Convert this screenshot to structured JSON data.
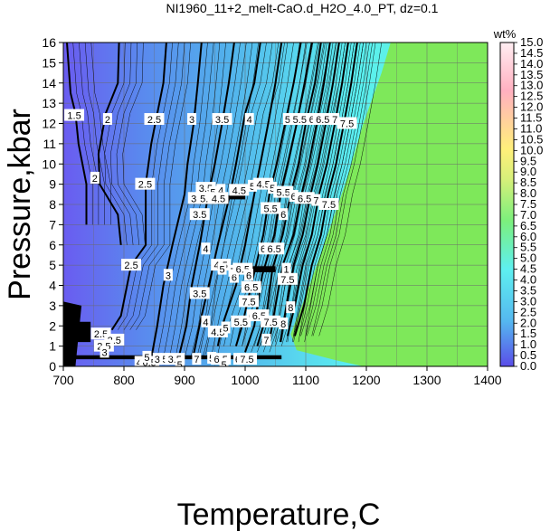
{
  "chart_data": {
    "type": "contour",
    "title": "NI1960_11+2_melt-CaO.d_H2O_4.0_PT, dz=0.1",
    "xlabel": "Temperature,C",
    "ylabel": "Pressure,kbar",
    "xlim": [
      700,
      1400
    ],
    "ylim": [
      0,
      16
    ],
    "x_ticks": [
      700,
      800,
      900,
      1000,
      1100,
      1200,
      1300,
      1400
    ],
    "y_ticks": [
      0,
      1,
      2,
      3,
      4,
      5,
      6,
      7,
      8,
      9,
      10,
      11,
      12,
      13,
      14,
      15,
      16
    ],
    "grid": true,
    "colorbar": {
      "title": "wt%",
      "range": [
        0.0,
        15.0
      ],
      "ticks": [
        "0.0",
        "0.5",
        "1.0",
        "1.5",
        "2.0",
        "2.5",
        "3.0",
        "3.5",
        "4.0",
        "4.5",
        "5.0",
        "5.5",
        "6.0",
        "6.5",
        "7.0",
        "7.5",
        "8.0",
        "8.5",
        "9.0",
        "9.5",
        "10.0",
        "10.5",
        "11.0",
        "11.5",
        "12.0",
        "12.5",
        "13.0",
        "13.5",
        "14.0",
        "14.5",
        "15.0"
      ],
      "colors": [
        "#5a4de8",
        "#55b8f0",
        "#5ef0f0",
        "#7cf07c",
        "#d8f07a",
        "#fff07a",
        "#ffb0c0",
        "#ffffff"
      ]
    },
    "fill_above_liquidus": "#7ee85a",
    "contours": [
      {
        "level": "1.5",
        "points": [
          [
            706,
            16
          ],
          [
            712,
            13.5
          ],
          [
            720,
            12.5
          ],
          [
            725,
            11
          ],
          [
            738,
            9
          ],
          [
            738,
            7
          ]
        ]
      },
      {
        "level": "2",
        "points": [
          [
            792,
            16
          ],
          [
            790,
            14
          ],
          [
            770,
            12.5
          ],
          [
            758,
            10.5
          ],
          [
            760,
            9
          ],
          [
            790,
            7.5
          ],
          [
            795,
            6
          ]
        ]
      },
      {
        "level": "2.5",
        "points": [
          [
            870,
            16
          ],
          [
            865,
            14
          ],
          [
            845,
            11
          ],
          [
            836,
            9
          ],
          [
            836,
            6
          ],
          [
            812,
            5
          ],
          [
            795,
            2.5
          ],
          [
            780,
            1.8
          ]
        ]
      },
      {
        "level": "3",
        "points": [
          [
            928,
            16
          ],
          [
            922,
            14
          ],
          [
            915,
            12
          ],
          [
            905,
            10
          ],
          [
            900,
            8.5
          ],
          [
            880,
            6
          ],
          [
            865,
            4
          ],
          [
            855,
            2
          ],
          [
            845,
            0.4
          ]
        ]
      },
      {
        "level": "3.5",
        "points": [
          [
            982,
            16
          ],
          [
            973,
            14
          ],
          [
            962,
            12
          ],
          [
            950,
            10
          ],
          [
            938,
            8.3
          ],
          [
            925,
            6
          ],
          [
            912,
            4
          ],
          [
            903,
            2
          ],
          [
            890,
            0.4
          ]
        ]
      },
      {
        "level": "4",
        "points": [
          [
            1025,
            16
          ],
          [
            1015,
            14
          ],
          [
            1000,
            12.5
          ],
          [
            985,
            10
          ],
          [
            975,
            8.5
          ],
          [
            955,
            6
          ],
          [
            940,
            4
          ],
          [
            928,
            2.5
          ],
          [
            915,
            0.6
          ]
        ]
      },
      {
        "level": "4.5",
        "points": [
          [
            1060,
            16
          ],
          [
            1050,
            14
          ],
          [
            1038,
            12
          ],
          [
            1025,
            10
          ],
          [
            1015,
            8.5
          ],
          [
            1000,
            6
          ],
          [
            985,
            4
          ],
          [
            962,
            2
          ],
          [
            955,
            1
          ]
        ]
      },
      {
        "level": "5",
        "points": [
          [
            1092,
            16
          ],
          [
            1080,
            14
          ],
          [
            1066,
            12
          ],
          [
            1052,
            10
          ],
          [
            1040,
            8.5
          ],
          [
            1030,
            6.5
          ],
          [
            1010,
            4
          ],
          [
            995,
            2
          ],
          [
            985,
            1
          ]
        ]
      },
      {
        "level": "5.5",
        "points": [
          [
            1110,
            16
          ],
          [
            1098,
            14
          ],
          [
            1085,
            12
          ],
          [
            1070,
            10
          ],
          [
            1058,
            8.5
          ],
          [
            1048,
            6.5
          ],
          [
            1028,
            4.5
          ],
          [
            1015,
            2
          ],
          [
            1000,
            0.7
          ]
        ]
      },
      {
        "level": "6",
        "points": [
          [
            1125,
            16
          ],
          [
            1115,
            14
          ],
          [
            1100,
            12
          ],
          [
            1088,
            10
          ],
          [
            1075,
            8.5
          ],
          [
            1062,
            6.5
          ],
          [
            1045,
            4.8
          ],
          [
            1035,
            2.5
          ],
          [
            1020,
            1
          ]
        ]
      },
      {
        "level": "6.5",
        "points": [
          [
            1140,
            16
          ],
          [
            1130,
            14
          ],
          [
            1118,
            12
          ],
          [
            1105,
            10
          ],
          [
            1093,
            8.5
          ],
          [
            1080,
            6.5
          ],
          [
            1062,
            5
          ],
          [
            1050,
            3
          ],
          [
            1040,
            1.2
          ]
        ]
      },
      {
        "level": "7",
        "points": [
          [
            1155,
            16
          ],
          [
            1145,
            14
          ],
          [
            1133,
            12
          ],
          [
            1120,
            10
          ],
          [
            1108,
            8.5
          ],
          [
            1095,
            6.5
          ],
          [
            1080,
            5
          ],
          [
            1068,
            3
          ],
          [
            1058,
            1.2
          ]
        ]
      },
      {
        "level": "7.5",
        "points": [
          [
            1170,
            16
          ],
          [
            1160,
            14
          ],
          [
            1148,
            12
          ],
          [
            1135,
            10
          ],
          [
            1122,
            8.5
          ],
          [
            1110,
            6.5
          ],
          [
            1095,
            5
          ],
          [
            1082,
            3
          ],
          [
            1070,
            1.5
          ]
        ]
      },
      {
        "level": "8",
        "points": [
          [
            1185,
            16
          ],
          [
            1175,
            14
          ],
          [
            1163,
            12
          ],
          [
            1150,
            10
          ],
          [
            1137,
            8.5
          ],
          [
            1125,
            6.5
          ],
          [
            1110,
            5
          ],
          [
            1097,
            3
          ],
          [
            1082,
            1.5
          ]
        ]
      }
    ],
    "labels": [
      {
        "text": "1.5",
        "x": 718,
        "y": 12.4
      },
      {
        "text": "2",
        "x": 773,
        "y": 12.2
      },
      {
        "text": "2.5",
        "x": 850,
        "y": 12.2
      },
      {
        "text": "3",
        "x": 912,
        "y": 12.2
      },
      {
        "text": "3.5",
        "x": 962,
        "y": 12.2
      },
      {
        "text": "4",
        "x": 1007,
        "y": 12.2
      },
      {
        "text": "5",
        "x": 1070,
        "y": 12.2
      },
      {
        "text": "5.5",
        "x": 1090,
        "y": 12.2
      },
      {
        "text": "6",
        "x": 1110,
        "y": 12.2
      },
      {
        "text": "6.5",
        "x": 1128,
        "y": 12.2
      },
      {
        "text": "7",
        "x": 1148,
        "y": 12.2
      },
      {
        "text": "7.5",
        "x": 1168,
        "y": 12.0
      },
      {
        "text": "2",
        "x": 752,
        "y": 9.3
      },
      {
        "text": "2.5",
        "x": 835,
        "y": 9.0
      },
      {
        "text": "3.5",
        "x": 935,
        "y": 8.8
      },
      {
        "text": "5",
        "x": 947,
        "y": 8.6
      },
      {
        "text": "4",
        "x": 960,
        "y": 8.7
      },
      {
        "text": "3.5",
        "x": 922,
        "y": 8.3
      },
      {
        "text": "5.5",
        "x": 937,
        "y": 8.3
      },
      {
        "text": "4.5",
        "x": 956,
        "y": 8.3
      },
      {
        "text": "4.5",
        "x": 990,
        "y": 8.7
      },
      {
        "text": "5",
        "x": 1012,
        "y": 8.9
      },
      {
        "text": "4.5",
        "x": 1030,
        "y": 9.0
      },
      {
        "text": "5",
        "x": 1045,
        "y": 8.8
      },
      {
        "text": "5.5",
        "x": 1063,
        "y": 8.6
      },
      {
        "text": "6",
        "x": 1080,
        "y": 8.4
      },
      {
        "text": "6.5",
        "x": 1098,
        "y": 8.3
      },
      {
        "text": "7",
        "x": 1117,
        "y": 8.2
      },
      {
        "text": "7.5",
        "x": 1138,
        "y": 8.0
      },
      {
        "text": "3.5",
        "x": 925,
        "y": 7.5
      },
      {
        "text": "5.5",
        "x": 1042,
        "y": 7.8
      },
      {
        "text": "6",
        "x": 1063,
        "y": 7.5
      },
      {
        "text": "4",
        "x": 935,
        "y": 5.8
      },
      {
        "text": "4.5",
        "x": 960,
        "y": 5.0
      },
      {
        "text": "6",
        "x": 1030,
        "y": 5.8
      },
      {
        "text": "6.5",
        "x": 1048,
        "y": 5.8
      },
      {
        "text": "1",
        "x": 1068,
        "y": 4.8
      },
      {
        "text": "7.5",
        "x": 1070,
        "y": 4.3
      },
      {
        "text": "5",
        "x": 962,
        "y": 4.8
      },
      {
        "text": "7",
        "x": 980,
        "y": 4.7
      },
      {
        "text": "6",
        "x": 982,
        "y": 4.4
      },
      {
        "text": "6.5",
        "x": 996,
        "y": 4.8
      },
      {
        "text": "6",
        "x": 1006,
        "y": 4.5
      },
      {
        "text": "6.5",
        "x": 1010,
        "y": 3.9
      },
      {
        "text": "7.5",
        "x": 1006,
        "y": 3.2
      },
      {
        "text": "2.5",
        "x": 812,
        "y": 5.0
      },
      {
        "text": "3",
        "x": 873,
        "y": 4.5
      },
      {
        "text": "3.5",
        "x": 925,
        "y": 3.6
      },
      {
        "text": "4",
        "x": 935,
        "y": 2.2
      },
      {
        "text": "4.5",
        "x": 955,
        "y": 1.7
      },
      {
        "text": "5",
        "x": 968,
        "y": 1.9
      },
      {
        "text": "5.5",
        "x": 993,
        "y": 2.2
      },
      {
        "text": "6",
        "x": 1010,
        "y": 2.5
      },
      {
        "text": "6.5",
        "x": 1023,
        "y": 2.5
      },
      {
        "text": "7.5",
        "x": 1042,
        "y": 2.2
      },
      {
        "text": "8",
        "x": 1063,
        "y": 2.1
      },
      {
        "text": "8",
        "x": 1075,
        "y": 2.9
      },
      {
        "text": "7",
        "x": 1035,
        "y": 1.3
      },
      {
        "text": "2.5",
        "x": 762,
        "y": 1.6
      },
      {
        "text": "2.5",
        "x": 784,
        "y": 1.3
      },
      {
        "text": "2.5",
        "x": 767,
        "y": 1.0
      },
      {
        "text": "3",
        "x": 768,
        "y": 0.7
      },
      {
        "text": "4",
        "x": 825,
        "y": 0.2
      },
      {
        "text": "6.5",
        "x": 842,
        "y": 0.2
      },
      {
        "text": "5",
        "x": 838,
        "y": 0.45
      },
      {
        "text": "3",
        "x": 855,
        "y": 0.35
      },
      {
        "text": "5",
        "x": 868,
        "y": 0.35
      },
      {
        "text": "3.5",
        "x": 884,
        "y": 0.35
      },
      {
        "text": "5",
        "x": 892,
        "y": 0.1
      },
      {
        "text": "7",
        "x": 920,
        "y": 0.35
      },
      {
        "text": "5",
        "x": 945,
        "y": 0.4
      },
      {
        "text": "6.5",
        "x": 960,
        "y": 0.35
      },
      {
        "text": "5",
        "x": 965,
        "y": 0.1
      },
      {
        "text": "6",
        "x": 988,
        "y": 0.35
      },
      {
        "text": "7.5",
        "x": 1003,
        "y": 0.35
      }
    ]
  }
}
